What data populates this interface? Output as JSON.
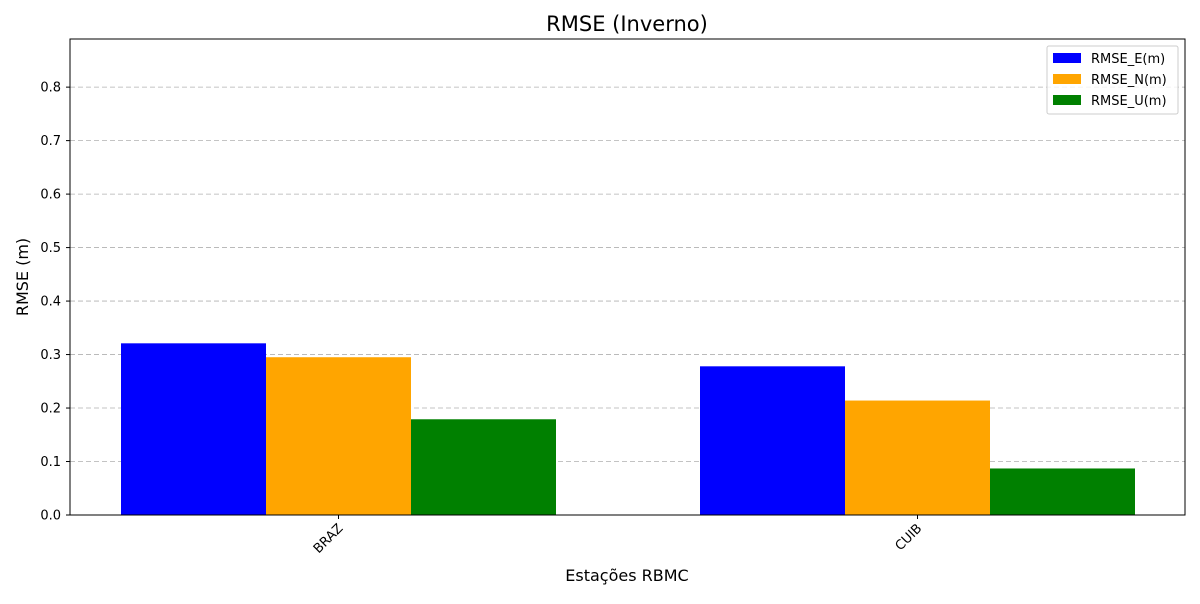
{
  "chart_data": {
    "type": "bar",
    "title": "RMSE (Inverno)",
    "xlabel": "Estações RBMC",
    "ylabel": "RMSE (m)",
    "categories": [
      "BRAZ",
      "CUIB"
    ],
    "series": [
      {
        "name": "RMSE_E(m)",
        "color": "#0000ff",
        "values": [
          0.321,
          0.278
        ]
      },
      {
        "name": "RMSE_N(m)",
        "color": "#ffa500",
        "values": [
          0.295,
          0.214
        ]
      },
      {
        "name": "RMSE_U(m)",
        "color": "#008000",
        "values": [
          0.179,
          0.087
        ]
      }
    ],
    "ylim": [
      0,
      0.89
    ],
    "yticks": [
      "0.0",
      "0.1",
      "0.2",
      "0.3",
      "0.4",
      "0.5",
      "0.6",
      "0.7",
      "0.8"
    ],
    "grid": "y-dashed",
    "legend_position": "top-right",
    "xtick_rotation": 45
  }
}
